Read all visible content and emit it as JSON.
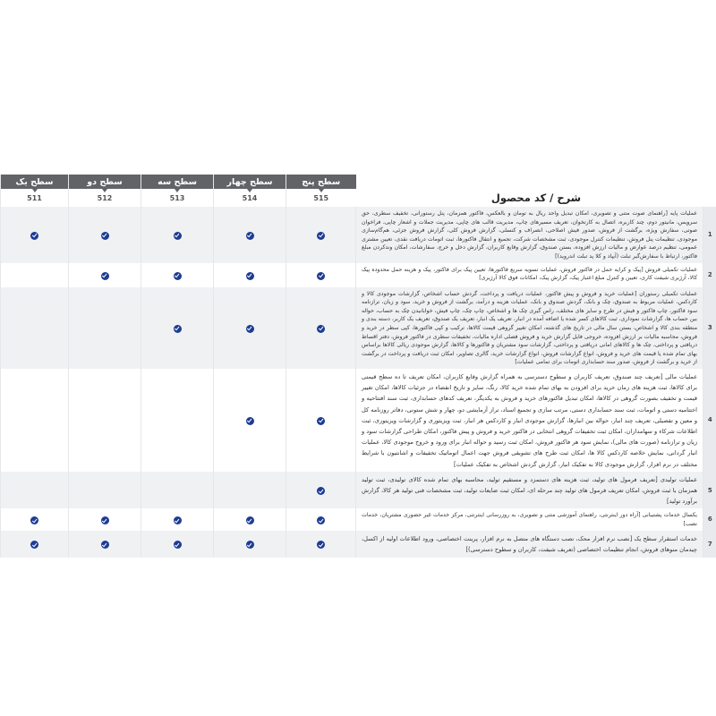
{
  "table": {
    "description_header": "شرح / کد محصول",
    "levels": [
      {
        "label": "سطح پنج",
        "code": "515"
      },
      {
        "label": "سطح چهار",
        "code": "514"
      },
      {
        "label": "سطح سه",
        "code": "513"
      },
      {
        "label": "سطح دو",
        "code": "512"
      },
      {
        "label": "سطح یک",
        "code": "511"
      }
    ],
    "rows": [
      {
        "number": "1",
        "description": "عملیات پایه [راهنمای صوت متنی و تصویری، امکان تبدیل واحد ریال به تومان و بالعکس، فاکتور همزمان، پنل رستورانی، تخفیف سطری، حق سرویس، مانیتور دوم، چند کاربره، اتصال به کارتخوان، تعریف مسیرهای چاپ، مدیریت قالب های چاپی، مدیریت جملات و اشعار چاپی، فراخوان صوتی، سفارش ویژه، برگشت از فروش، صدور فیش اصلاحی، انصراف و کنسلی، گزارش فروش کلی، گزارش فروش جزئی، هم‌گام‌سازی موجودی، تنظیمات پنل فروش، تنظیمات کنترل موجودی، ثبت مشخصات شرکت، تجمیع و انتقال فاکتورها، ثبت اتومات دریافت نقدی، تعیین مشتری عمومی، تنظیم درصد عوارض و مالیات ارزش افزوده، بستن صندوق، گزارش وقایع کاربران، گزارش دخل و خرج، سفارشات، امکان وندکردن مبلغ فاکتور، ارتباط با سفارش‌گیر تبلت (آیپاد و کلا پد تبلت اندروید)]",
        "levels": [
          true,
          true,
          true,
          true,
          true
        ],
        "shaded": true,
        "big": false
      },
      {
        "number": "2",
        "description": "عملیات تکمیلی فروش [پیک و کرایه حمل در فاکتور فروش، عملیات تسویه سریع فاکتورها، تعیین پیک برای فاکتور، پیک و هزینه حمل محدوده پیک کالا، آرژیری شیفت کاری، تعیین و کنترل مبلغ اعتبار پیک، گزارش پیک، امکانات فوق کالا آرژیری]",
        "levels": [
          true,
          true,
          true,
          true,
          false
        ],
        "shaded": false,
        "big": false
      },
      {
        "number": "3",
        "description": "عملیات تکمیلی رستوران [عملیات خرید و فروش و پیش فاکتور، عملیات دریافت و پرداخت، گردش حساب اشخاص، گزارشات موجودی کالا و کاردکس، عملیات مربوط به صندوق، چک و بانک، گردش صندوق و بانک، عملیات هزینه و درآمد، برگشت از فروش و خرید، سود و زیان، ترازنامه سود فاکتور، چاپ فاکتور و فیش در طرح و سایز های مختلف، راس گیری چک ها و اشخاص، چاپ چک، چاپ فیش، خوابانیدن چک به حساب، حواله بین حساب ها، گزارشات نموداری، ثبت کالاهای کسر شده یا اضافه آمده در انبار، تعریف یک انبار، تعریف یک صندوق، تعریف یک کاربر، دسته بندی و منطقه بندی کالا و اشخاص، بستن سال مالی در تاریخ های گذشته، امکان تغییر گروهی قیمت کالاها، ترکیب و کپی فاکتورها، کپی سطر در خرید و فروش، محاسبه مالیات بر ارزش افزوده، خروجی فایل گزارش خرید و فروش فصلی اداره مالیات، تخفیفات سطری در فاکتور فروش، دفتر اقساط دریافتی و پرداختی، چک ها و کالاهای امانی دریافتی و پرداختی، گزارشات سود مشتریان و فاکتورها و کالاها، گزارش موجودی ریالی کالاها براساس بهای تمام شده یا قیمت های خرید و فروش، انواع گزارشات فروش، انواع گزارشات خرید، گالری تصاویر، امکان ثبت دریافت و پرداخت در برگشت از خرید و برگشت از فروش، صدور سند حسابداری اتومات برای تمامی عملیات]",
        "levels": [
          true,
          true,
          true,
          false,
          false
        ],
        "shaded": true,
        "big": false
      },
      {
        "number": "4",
        "description": "عملیات مالی [تعریف چند صندوق، تعریف کاربران و سطوح دسترسی به همراه گزارش وقایع کاربران، امکان تعریف تا ده سطح قیمتی برای کالاها، ثبت هزینه های زمان خرید برای افزودن به بهای تمام شده خرید کالا، رنگ، سایز و تاریخ انقضاء در جزئیات کالاها، امکان تغییر قیمت و تخفیف بصورت گروهی در کالاها، امکان تبدیل فاکتورهای خرید و فروش به یکدیگر، تعریف کدهای حسابداری، ثبت سند افتتاحیه و اختتامیه دستی و اتومات، ثبت سند حسابداری دستی، مرتب سازی و تجمیع اسناد، تراز آزمایشی دو، چهار و شش ستونی، دفاتر روزنامه کل و معین و تفصیلی، تعریف چند انبار، حواله بین انبارها، گزارش موجودی انبار و کاردکس هر انبار، ثبت ویزیتوری و گزارشات ویزیتوری، ثبت اطلاعات شرکاء و سهامداران، امکان ثبت تخفیفات گروهی انتخابی در فاکتور خرید و فروش و پیش فاکتور، امکان طراحی گزارشات سود و زیان و ترازنامه (صورت های مالی)، نمایش سود هر فاکتور فروش، امکان ثبت رسید و حواله انبار برای ورود و خروج موجودی کالا، عملیات انبار گردانی، نمایش خلاصه کاردکس کالا ها، امکان ثبت طرح های تشویقی فروش جهت اعمال اتوماتیک تخفیفات و اشانتیون با شرایط مختلف در نرم افزار، گزارش موجودی کالا به تفکیک انبار، گزارش گردش اشخاص به تفکیک عملیات]",
        "levels": [
          true,
          true,
          false,
          false,
          false
        ],
        "shaded": false,
        "big": true
      },
      {
        "number": "5",
        "description": "عملیات تولیدی [تعریف فرمول های تولید، ثبت هزینه های دستمزد و مستقیم تولید، محاسبه بهای تمام شده کالای تولیدی، ثبت تولید همزمان با ثبت فروش، امکان تعریف فرمول های تولید چند مرحله ای، امکان ثبت ضایعات تولید، ثبت مشخصات فنی تولید هر کالا، گزارش برآورد تولید]",
        "levels": [
          true,
          false,
          false,
          false,
          false
        ],
        "shaded": true,
        "big": true
      },
      {
        "number": "6",
        "description": "یکسال خدمات پشتیبانی [آراه دور اینترنتی، راهنمای آموزشی متنی و تصویری، به روزرسانی اینترنتی، مرکز خدمات غیر حضوری مشتریان، خدمات نصب]",
        "levels": [
          true,
          true,
          true,
          true,
          true
        ],
        "shaded": false,
        "big": false
      },
      {
        "number": "7",
        "description": "خدمات استقرار سطح یک [نصب نرم افزار محک، نصب دستگاه های متصل به نرم افزار، پرینت اختصاصی، ورود اطلاعات اولیه از اکسل، چیدمان منوهای فروش، انجام تنظیمات اختصاصی (تعریف شیفت، کاربران و سطوح دسترسی)]",
        "levels": [
          true,
          true,
          true,
          true,
          true
        ],
        "shaded": true,
        "big": true
      }
    ]
  },
  "colors": {
    "header_bg": "#626367",
    "check": "#1d3c94",
    "row_shade": "#f0f1f3"
  },
  "icons": {
    "check": "check-circle-icon"
  }
}
